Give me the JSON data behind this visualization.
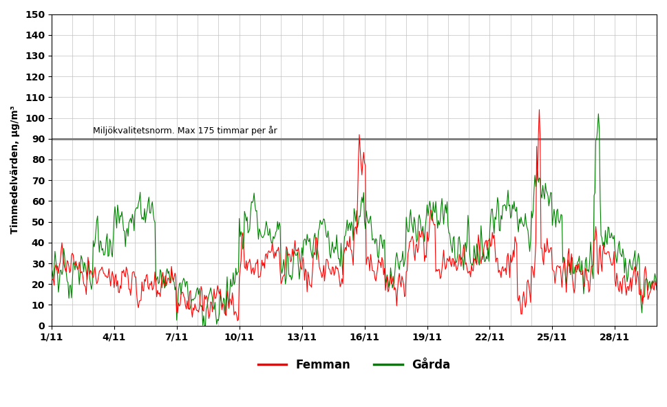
{
  "ylabel": "Timmedelvärden, µg/m³",
  "ylim": [
    0,
    150
  ],
  "yticks": [
    0,
    10,
    20,
    30,
    40,
    50,
    60,
    70,
    80,
    90,
    100,
    110,
    120,
    130,
    140,
    150
  ],
  "norm_line_y": 90,
  "norm_label": "Miljökvalitetsnorm. Max 175 timmar per år",
  "xtick_labels": [
    "1/11",
    "4/11",
    "7/11",
    "10/11",
    "13/11",
    "16/11",
    "19/11",
    "22/11",
    "25/11",
    "28/11"
  ],
  "xtick_days": [
    1,
    4,
    7,
    10,
    13,
    16,
    19,
    22,
    25,
    28
  ],
  "femman_color": "#FF0000",
  "garda_color": "#008000",
  "norm_color": "#808080",
  "legend_femman": "Femman",
  "legend_garda": "Gårda",
  "background_color": "#FFFFFF",
  "grid_color": "#C0C0C0",
  "figsize": [
    9.69,
    5.92
  ],
  "dpi": 100
}
